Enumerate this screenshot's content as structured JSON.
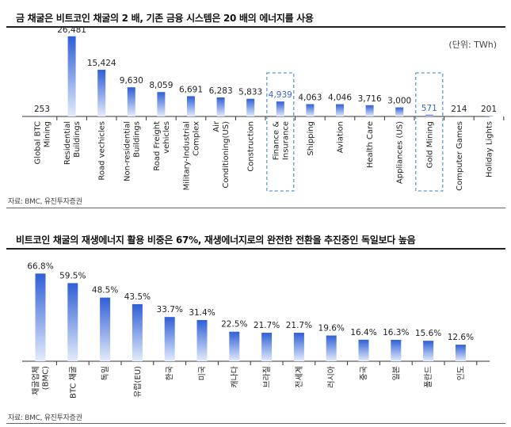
{
  "chart_data": [
    {
      "type": "bar",
      "title": "금 채굴은 비트코인 채굴의 2 배, 기존 금융 시스템은 20 배의 에너지를 사용",
      "unit": "(단위: TWh)",
      "source": "자료: BMC, 유진투자증권",
      "categories": [
        "Global BTC Mining",
        "Residential Buildings",
        "Road vechicles",
        "Non-residential Buildings",
        "Road Freight vehicles",
        "Military-Industrial Complex",
        "Air Conditioning(US)",
        "Construction",
        "Finance & Insurance",
        "Shipping",
        "Aviation",
        "Health Care",
        "Appliances (US)",
        "Gold Mining",
        "Computer Games",
        "Holiday Lights"
      ],
      "category_lines": [
        [
          "Global BTC",
          "Mining"
        ],
        [
          "Residential",
          "Buildings"
        ],
        [
          "Road vechicles"
        ],
        [
          "Non-residential",
          "Buildings"
        ],
        [
          "Road Freight",
          "vehicles"
        ],
        [
          "Military-Industrial",
          "Complex"
        ],
        [
          "Air",
          "Conditioning(US)"
        ],
        [
          "Construction"
        ],
        [
          "Finance &",
          "Insurance"
        ],
        [
          "Shipping"
        ],
        [
          "Aviation"
        ],
        [
          "Health Care"
        ],
        [
          "Appliances (US)"
        ],
        [
          "Gold Mining"
        ],
        [
          "Computer Games"
        ],
        [
          "Holiday Lights"
        ]
      ],
      "values": [
        253,
        26481,
        15424,
        9630,
        8059,
        6691,
        6283,
        5833,
        4939,
        4063,
        4046,
        3716,
        3000,
        571,
        214,
        201
      ],
      "value_labels": [
        "253",
        "26,481",
        "15,424",
        "9,630",
        "8,059",
        "6,691",
        "6,283",
        "5,833",
        "4,939",
        "4,063",
        "4,046",
        "3,716",
        "3,000",
        "571",
        "214",
        "201"
      ],
      "highlighted": [
        "Finance & Insurance",
        "Gold Mining"
      ],
      "ylim": [
        0,
        28000
      ],
      "grid": false,
      "colors": {
        "bar_top": "#2f5fd6",
        "bar_bottom": "#e4ecfb",
        "highlight_box": "#5b9bd5",
        "highlight_label": "#3a63c8"
      }
    },
    {
      "type": "bar",
      "title": "비트코인 채굴의 재생에너지 활용 비중은 67%, 재생에너지로의 완전한 전환을 추진중인 독일보다 높음",
      "source": "자료: BMC, 유진투자증권",
      "categories": [
        "채굴업체(BMC)",
        "BTC 채굴",
        "독일",
        "유럽(EU)",
        "한국",
        "미국",
        "캐나다",
        "브라질",
        "전세계",
        "러시아",
        "중국",
        "일본",
        "폴란드",
        "인도"
      ],
      "category_lines": [
        [
          "채굴업체",
          "(BMC)"
        ],
        [
          "BTC 채굴"
        ],
        [
          "독일"
        ],
        [
          "유럽(EU)"
        ],
        [
          "한국"
        ],
        [
          "미국"
        ],
        [
          "캐나다"
        ],
        [
          "브라질"
        ],
        [
          "전세계"
        ],
        [
          "러시아"
        ],
        [
          "중국"
        ],
        [
          "일본"
        ],
        [
          "폴란드"
        ],
        [
          "인도"
        ]
      ],
      "values": [
        66.8,
        59.5,
        48.5,
        43.5,
        33.7,
        31.4,
        22.5,
        21.7,
        21.7,
        19.6,
        16.4,
        16.3,
        15.6,
        12.6
      ],
      "value_labels": [
        "66.8%",
        "59.5%",
        "48.5%",
        "43.5%",
        "33.7%",
        "31.4%",
        "22.5%",
        "21.7%",
        "21.7%",
        "19.6%",
        "16.4%",
        "16.3%",
        "15.6%",
        "12.6%"
      ],
      "ylim": [
        0,
        70
      ],
      "grid": false,
      "colors": {
        "bar_top": "#2f5fd6",
        "bar_bottom": "#e4ecfb"
      }
    }
  ]
}
